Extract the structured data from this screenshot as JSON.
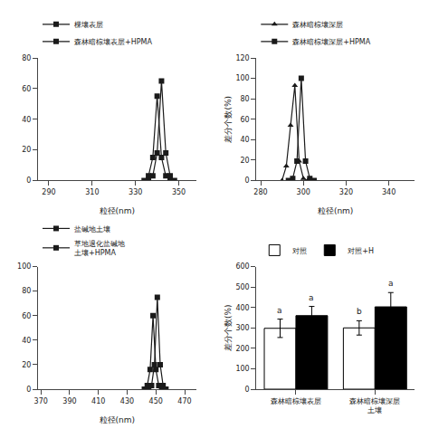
{
  "chart_data": [
    {
      "type": "line",
      "xlabel": "粒径(nm)",
      "series": [
        {
          "name": "棵壤表层",
          "color": "#1a1a1a",
          "marker": "square",
          "x": [
            334,
            336,
            338,
            340,
            342,
            344,
            346
          ],
          "values": [
            0,
            3,
            15,
            55,
            15,
            3,
            0
          ]
        },
        {
          "name": "森林暗棕壤表层+HPMA",
          "color": "#1a1a1a",
          "marker": "square",
          "x": [
            336,
            338,
            340,
            342,
            344,
            346,
            348
          ],
          "values": [
            0,
            3,
            18,
            65,
            18,
            3,
            0
          ]
        }
      ],
      "xlim": [
        285,
        358
      ],
      "xticks": [
        290,
        310,
        330,
        350
      ],
      "ylim": [
        0,
        80
      ],
      "yticks": [
        0,
        20,
        40,
        60,
        80
      ],
      "grid": false,
      "legend": "top"
    },
    {
      "type": "line",
      "xlabel": "粒径(nm)",
      "ylabel": "差分个数(%)",
      "series": [
        {
          "name": "森林暗棕壤深层",
          "color": "#1a1a1a",
          "marker": "triangle",
          "x": [
            290,
            292,
            294,
            296,
            298,
            300,
            302
          ],
          "values": [
            0,
            14,
            54,
            93,
            19,
            2,
            0
          ]
        },
        {
          "name": "森林暗棕壤深层+HPMA",
          "color": "#1a1a1a",
          "marker": "square",
          "x": [
            293,
            295,
            297,
            299,
            301,
            303,
            305
          ],
          "values": [
            0,
            2,
            19,
            100,
            19,
            2,
            0
          ]
        }
      ],
      "xlim": [
        278,
        352
      ],
      "xticks": [
        280,
        300,
        320,
        340
      ],
      "ylim": [
        0,
        120
      ],
      "yticks": [
        0,
        20,
        40,
        60,
        80,
        100,
        120
      ],
      "grid": false,
      "legend": "top"
    },
    {
      "type": "line",
      "xlabel": "粒径(nm)",
      "series": [
        {
          "name": "盐碱地土壤",
          "color": "#1a1a1a",
          "marker": "square",
          "x": [
            442,
            444,
            446,
            448,
            450,
            452,
            454
          ],
          "values": [
            0,
            3,
            16,
            60,
            16,
            3,
            0
          ]
        },
        {
          "name": "草地退化盐碱地\n土壤+HPMA",
          "color": "#1a1a1a",
          "marker": "square",
          "x": [
            445,
            447,
            449,
            451,
            453,
            455,
            457
          ],
          "values": [
            0,
            3,
            20,
            75,
            20,
            3,
            0
          ]
        }
      ],
      "xlim": [
        368,
        478
      ],
      "xticks": [
        370,
        390,
        410,
        430,
        450,
        470
      ],
      "ylim": [
        0,
        100
      ],
      "yticks": [
        0,
        20,
        40,
        60,
        80,
        100
      ],
      "grid": false,
      "legend": "top"
    },
    {
      "type": "bar",
      "ylabel": "差分个数(%)",
      "categories": [
        "森林暗棕壤表层",
        "森林暗棕壤深层\n土壤"
      ],
      "series": [
        {
          "name": "对照",
          "color": "white",
          "values": [
            298,
            300
          ],
          "error": [
            45,
            35
          ],
          "annotations": [
            "a",
            "b"
          ]
        },
        {
          "name": "对照+H",
          "color": "black",
          "values": [
            360,
            403
          ],
          "error": [
            45,
            70
          ],
          "annotations": [
            "a",
            "a"
          ]
        }
      ],
      "ylim": [
        0,
        600
      ],
      "yticks": [
        0,
        100,
        200,
        300,
        400,
        500,
        600
      ],
      "grid": false,
      "legend": "top"
    }
  ]
}
